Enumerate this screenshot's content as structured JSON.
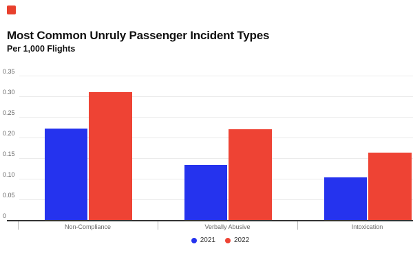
{
  "logo": {
    "color": "#e8402d"
  },
  "chart_data": {
    "type": "bar",
    "title": "Most Common Unruly Passenger Incident Types",
    "subtitle": "Per 1,000 Flights",
    "categories": [
      "Non-Compliance",
      "Verbally Abusive",
      "Intoxication"
    ],
    "series": [
      {
        "name": "2021",
        "color": "#2533ee",
        "values": [
          0.222,
          0.133,
          0.103
        ]
      },
      {
        "name": "2022",
        "color": "#ee4334",
        "values": [
          0.31,
          0.22,
          0.163
        ]
      }
    ],
    "xlabel": "",
    "ylabel": "",
    "ylim": [
      0,
      0.35
    ],
    "yticks": [
      0,
      0.05,
      0.1,
      0.15,
      0.2,
      0.25,
      0.3,
      0.35
    ],
    "ytick_labels": [
      "0",
      "0.05",
      "0.10",
      "0.15",
      "0.20",
      "0.25",
      "0.30",
      "0.35"
    ],
    "grid": "horizontal",
    "legend_position": "bottom"
  },
  "colors": {
    "grid": "#ebebeb",
    "axis": "#333333",
    "tick": "#b8b8b8",
    "label": "#666666",
    "title": "#111111"
  }
}
